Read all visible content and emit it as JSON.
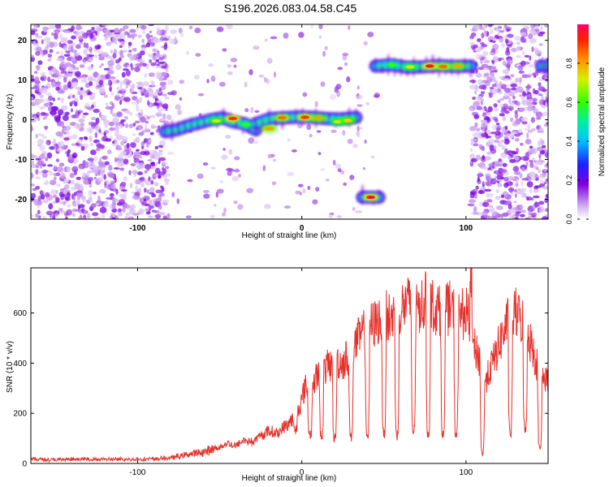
{
  "title": "S196.2026.083.04.58.C45",
  "chart_data": [
    {
      "type": "heatmap",
      "xlabel": "Height of straight line (km)",
      "ylabel": "Frequency (Hz)",
      "xlim": [
        -165,
        150
      ],
      "ylim": [
        -25,
        24
      ],
      "xticks": [
        -100,
        0,
        100
      ],
      "xtick_labels": [
        "-100",
        "0",
        "100"
      ],
      "yticks": [
        -20,
        -10,
        0,
        10,
        20
      ],
      "ytick_labels": [
        "-20",
        "-10",
        "0",
        "10",
        "20"
      ],
      "colorbar": {
        "label": "Normalized spectral amplitude",
        "range": [
          0,
          1
        ],
        "ticks": [
          0.0,
          0.2,
          0.4,
          0.6,
          0.8
        ],
        "tick_labels": [
          "0.0",
          "0.2",
          "0.4",
          "0.6",
          "0.8"
        ]
      },
      "noise_regions": [
        {
          "x": [
            -165,
            -82
          ],
          "density": "high"
        },
        {
          "x": [
            -82,
            30
          ],
          "density": "low"
        },
        {
          "x": [
            30,
            48
          ],
          "density": "low"
        },
        {
          "x": [
            103,
            150
          ],
          "density": "high"
        }
      ],
      "ridge_segments": [
        {
          "x": [
            -83,
            -28
          ],
          "freq": [
            -3,
            -2.5,
            -1.5,
            -0.8,
            0,
            0.5,
            -0.5,
            -1,
            -2.5
          ]
        },
        {
          "x": [
            -28,
            33
          ],
          "freq": [
            -1,
            0.3,
            0.5,
            0.7,
            0.6,
            0.3,
            0.2,
            0.6
          ]
        },
        {
          "x": [
            37,
            47
          ],
          "freq": [
            -19.5,
            -19.5
          ]
        },
        {
          "x": [
            45,
            103
          ],
          "freq": [
            13.5,
            13.8,
            13.2,
            13.3,
            13.6,
            13.4,
            13.5
          ]
        },
        {
          "x": [
            146,
            150
          ],
          "freq": [
            13.5,
            13.5
          ]
        }
      ],
      "peaks": [
        {
          "x": -52,
          "freq": -0.3,
          "amp": 0.7
        },
        {
          "x": -42,
          "freq": 0.3,
          "amp": 0.9
        },
        {
          "x": -34,
          "freq": -1.2,
          "amp": 0.6
        },
        {
          "x": -20,
          "freq": -2.2,
          "amp": 0.8
        },
        {
          "x": -12,
          "freq": 0.5,
          "amp": 0.85
        },
        {
          "x": 2,
          "freq": 0.6,
          "amp": 0.9
        },
        {
          "x": 10,
          "freq": 0.4,
          "amp": 0.8
        },
        {
          "x": 22,
          "freq": -0.5,
          "amp": 0.7
        },
        {
          "x": 28,
          "freq": -0.2,
          "amp": 0.75
        },
        {
          "x": 42,
          "freq": -19.5,
          "amp": 0.95
        },
        {
          "x": 55,
          "freq": 13.8,
          "amp": 0.6
        },
        {
          "x": 66,
          "freq": 13.3,
          "amp": 0.7
        },
        {
          "x": 78,
          "freq": 13.5,
          "amp": 0.95
        },
        {
          "x": 86,
          "freq": 13.4,
          "amp": 0.85
        },
        {
          "x": 95,
          "freq": 13.5,
          "amp": 0.8
        }
      ]
    },
    {
      "type": "line",
      "xlabel": "Height of straight line (km)",
      "ylabel": "SNR (10 * v/v)",
      "xlim": [
        -165,
        150
      ],
      "ylim": [
        0,
        780
      ],
      "xticks": [
        -100,
        0,
        100
      ],
      "xtick_labels": [
        "-100",
        "0",
        "100"
      ],
      "yticks": [
        0,
        200,
        400,
        600
      ],
      "ytick_labels": [
        "0",
        "200",
        "400",
        "600"
      ],
      "series": [
        {
          "name": "SNR",
          "color": "#e8302a",
          "x": [
            -165,
            -150,
            -130,
            -110,
            -90,
            -80,
            -70,
            -60,
            -50,
            -45,
            -40,
            -35,
            -30,
            -25,
            -20,
            -15,
            -10,
            -5,
            0,
            2,
            5,
            8,
            10,
            15,
            20,
            25,
            30,
            35,
            40,
            45,
            50,
            55,
            60,
            65,
            70,
            75,
            80,
            85,
            90,
            95,
            100,
            103,
            105,
            108,
            110,
            112,
            115,
            120,
            125,
            130,
            135,
            140,
            145,
            150
          ],
          "values": [
            18,
            15,
            17,
            16,
            18,
            22,
            35,
            45,
            65,
            80,
            70,
            95,
            85,
            110,
            130,
            120,
            150,
            180,
            250,
            310,
            270,
            330,
            360,
            380,
            410,
            400,
            450,
            500,
            540,
            560,
            590,
            580,
            620,
            640,
            610,
            650,
            630,
            600,
            620,
            580,
            610,
            520,
            460,
            420,
            380,
            330,
            380,
            470,
            560,
            600,
            560,
            470,
            360,
            330
          ],
          "dips": [
            {
              "x": -4,
              "value": 130
            },
            {
              "x": 5,
              "value": 115
            },
            {
              "x": 12,
              "value": 110
            },
            {
              "x": 20,
              "value": 100
            },
            {
              "x": 30,
              "value": 105
            },
            {
              "x": 40,
              "value": 110
            },
            {
              "x": 50,
              "value": 120
            },
            {
              "x": 58,
              "value": 115
            },
            {
              "x": 68,
              "value": 125
            },
            {
              "x": 77,
              "value": 120
            },
            {
              "x": 86,
              "value": 110
            },
            {
              "x": 94,
              "value": 115
            },
            {
              "x": 110,
              "value": 40
            },
            {
              "x": 127,
              "value": 120
            },
            {
              "x": 136,
              "value": 140
            },
            {
              "x": 145,
              "value": 60
            }
          ],
          "peak": {
            "x": 103,
            "value": 790
          }
        }
      ]
    }
  ]
}
